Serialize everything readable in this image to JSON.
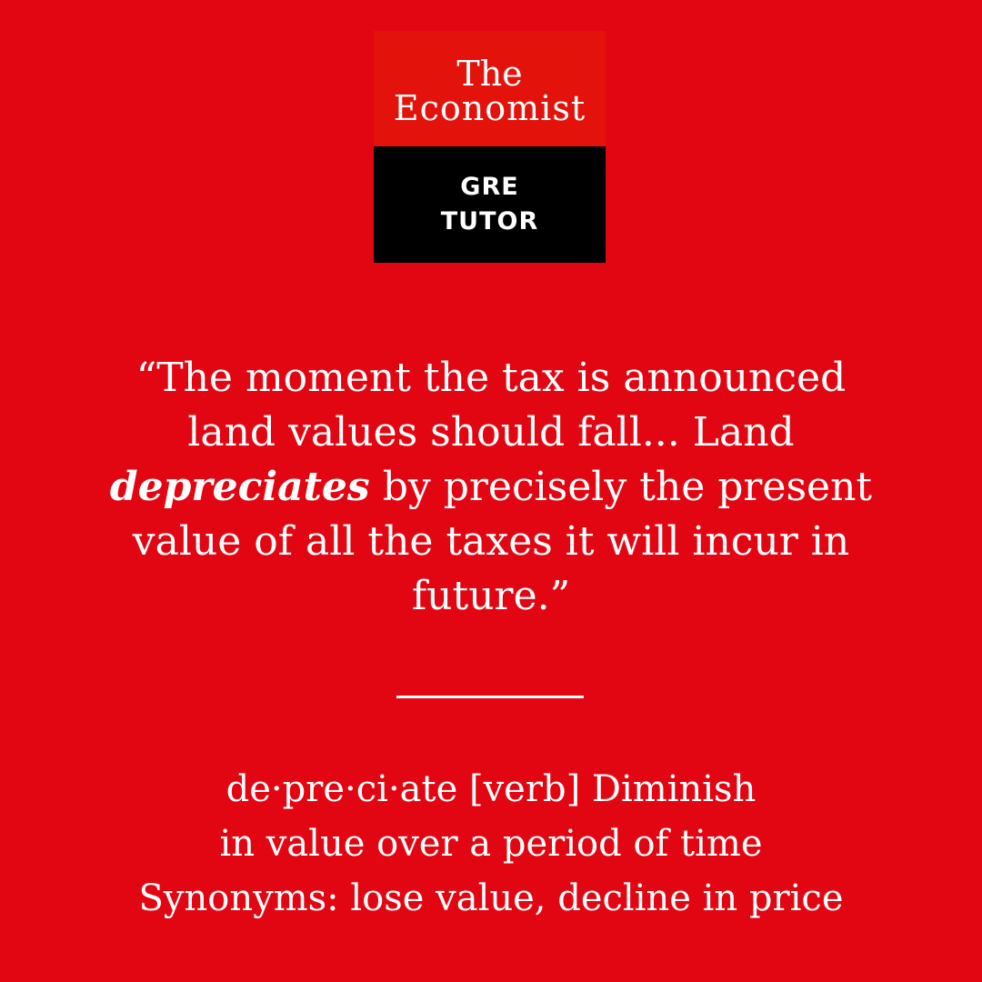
{
  "logo": {
    "line1": "The",
    "line2": "Economist",
    "sub1": "GRE",
    "sub2": "TUTOR"
  },
  "quote": {
    "part1": "“The moment the tax is announced land values should fall... Land ",
    "keyword": "depreciates",
    "part2": " by precisely the present value of all the taxes it will incur in future.”"
  },
  "definition": {
    "line1": "de·pre·ci·ate [verb] Diminish",
    "line2": "in value over a period of time",
    "line3": "Synonyms: lose value, decline in price"
  },
  "colors": {
    "background": "#e20613",
    "logo_red": "#e3120b",
    "logo_black": "#000000",
    "text": "#ffffff"
  }
}
